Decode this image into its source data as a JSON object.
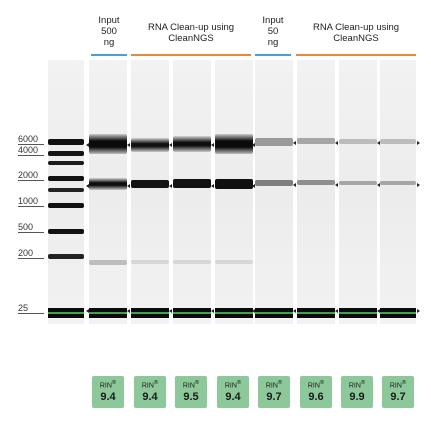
{
  "headers": [
    {
      "text": "Input 500 ng",
      "lines": [
        "Input",
        "500",
        "ng"
      ]
    },
    {
      "text": "RNA Clean-up using CleanNGS",
      "lines": [
        "RNA Clean-up using",
        "CleanNGS"
      ]
    },
    {
      "text": "Input 50 ng",
      "lines": [
        "Input",
        "50",
        "ng"
      ]
    },
    {
      "text": "RNA Clean-up using CleanNGS",
      "lines": [
        "RNA Clean-up using",
        "CleanNGS"
      ]
    }
  ],
  "header_colors": {
    "input": "#4a9fd4",
    "cleanup": "#e8893a"
  },
  "ladder_labels": [
    "6000",
    "4000",
    "2000",
    "1000",
    "500",
    "200",
    "25"
  ],
  "rin_label": "RIN",
  "rin_mark": "®",
  "rin_values": [
    "9.4",
    "9.4",
    "9.5",
    "9.4",
    "9.7",
    "9.6",
    "9.9",
    "9.7"
  ]
}
